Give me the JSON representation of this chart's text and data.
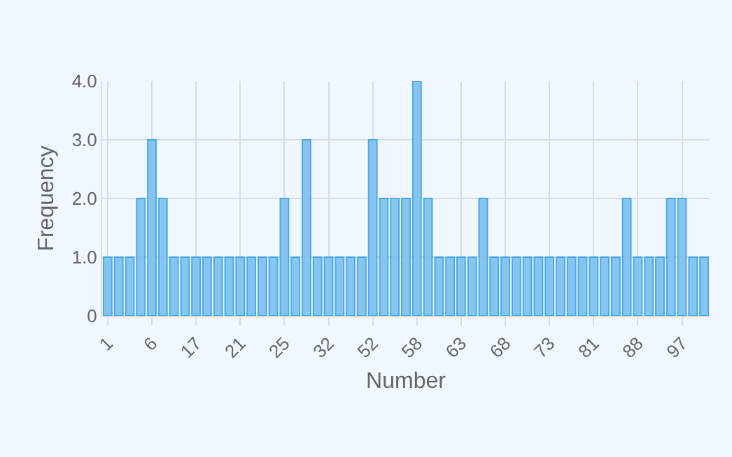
{
  "chart_data": {
    "type": "bar",
    "xlabel": "Number",
    "ylabel": "Frequency",
    "categories": [
      "1",
      null,
      null,
      null,
      "6",
      null,
      null,
      null,
      "17",
      null,
      null,
      null,
      "21",
      null,
      null,
      null,
      "25",
      null,
      null,
      null,
      "32",
      null,
      null,
      null,
      "52",
      null,
      null,
      null,
      "58",
      null,
      null,
      null,
      "63",
      null,
      null,
      null,
      "68",
      null,
      null,
      null,
      "73",
      null,
      null,
      null,
      "81",
      null,
      null,
      null,
      "88",
      null,
      null,
      null,
      "97",
      null,
      null
    ],
    "values": [
      1,
      1,
      1,
      2,
      3,
      2,
      1,
      1,
      1,
      1,
      1,
      1,
      1,
      1,
      1,
      1,
      2,
      1,
      3,
      1,
      1,
      1,
      1,
      1,
      3,
      2,
      2,
      2,
      4,
      2,
      1,
      1,
      1,
      1,
      2,
      1,
      1,
      1,
      1,
      1,
      1,
      1,
      1,
      1,
      1,
      1,
      1,
      2,
      1,
      1,
      1,
      2,
      2,
      1,
      1
    ],
    "color": "#7cc0f0",
    "ylim": [
      0,
      4
    ],
    "yticks": [
      0,
      {
        "value": 1,
        "label": "1.0"
      },
      {
        "value": 2,
        "label": "2.0"
      },
      {
        "value": 3,
        "label": "3.0"
      },
      {
        "value": 4,
        "label": "4.0"
      }
    ],
    "grid": true,
    "legend": false
  }
}
